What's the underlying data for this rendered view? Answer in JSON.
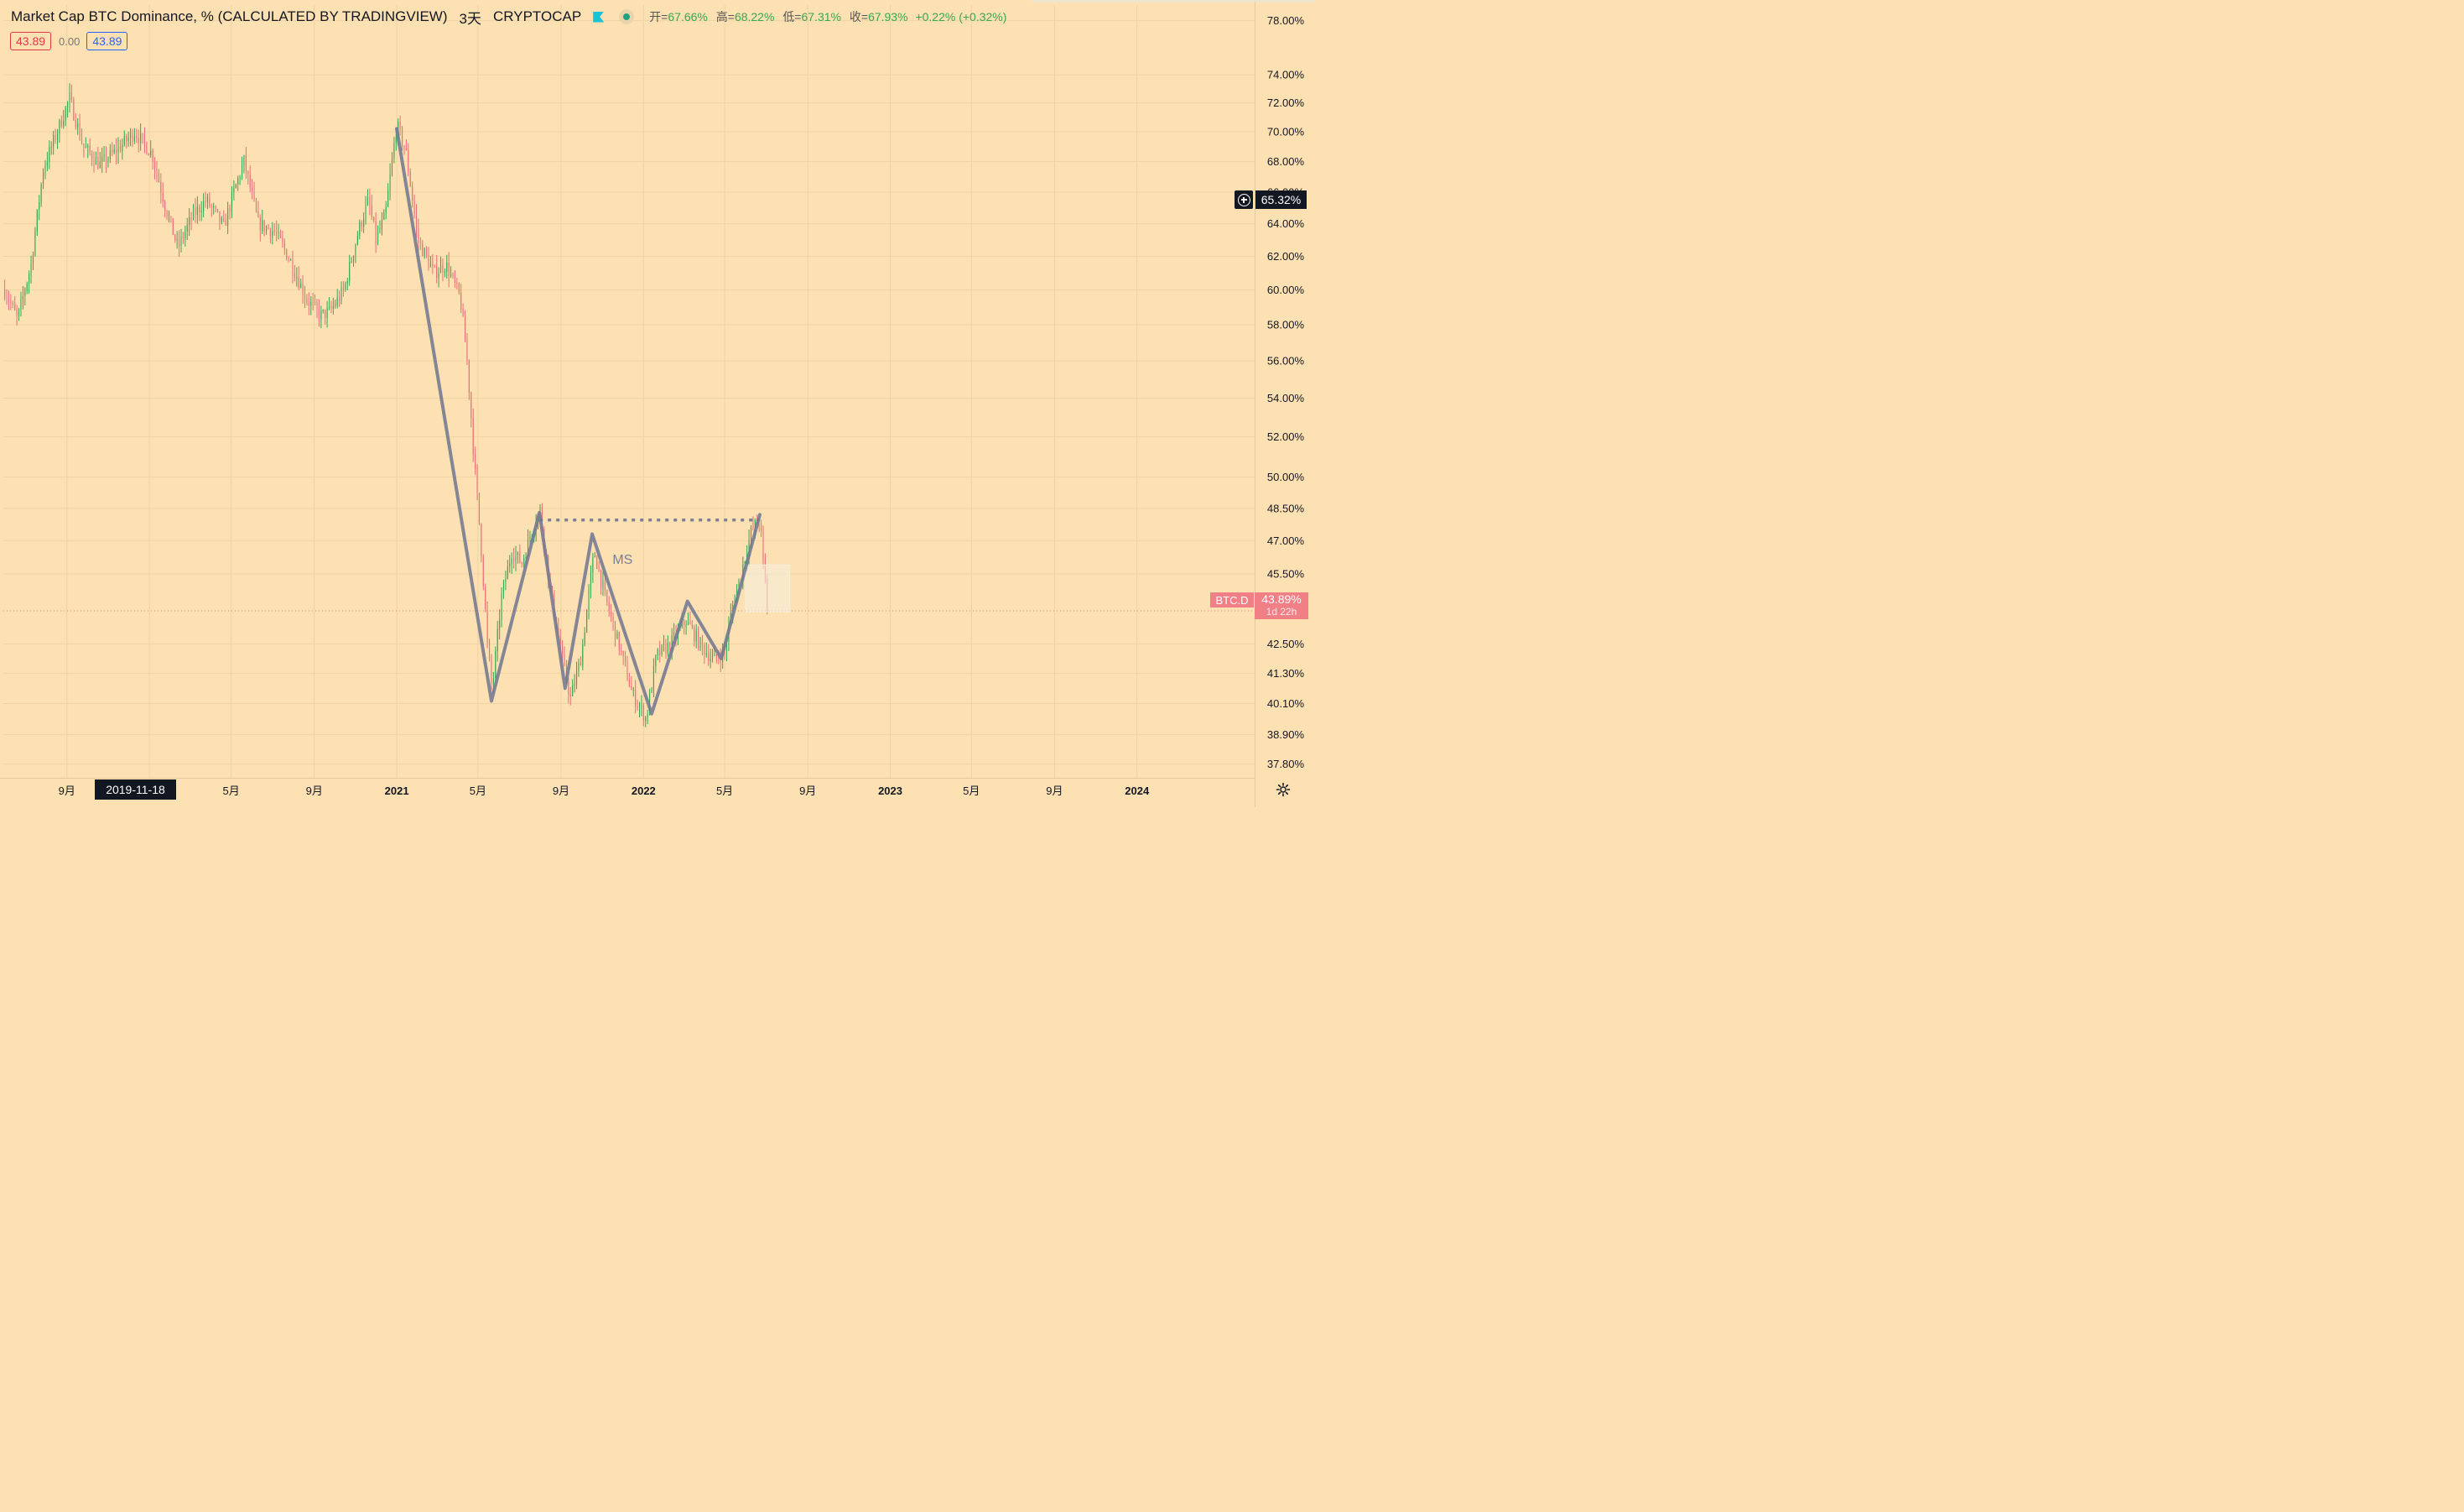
{
  "header": {
    "title": "Market Cap BTC Dominance, % (CALCULATED BY TRADINGVIEW)",
    "timeframe": "3天",
    "exchange": "CRYPTOCAP",
    "ohlc": {
      "open_label": "开=",
      "open": "67.66%",
      "high_label": "高=",
      "high": "68.22%",
      "low_label": "低=",
      "low": "67.31%",
      "close_label": "收=",
      "close": "67.93%",
      "change": "+0.22% (+0.32%)"
    }
  },
  "bid_ask": {
    "bid": "43.89",
    "spread": "0.00",
    "ask": "43.89"
  },
  "crosshair": {
    "date": "2019-11-18",
    "price": "65.32%"
  },
  "last_price": {
    "symbol": "BTC.D",
    "value": "43.89%",
    "countdown": "1d 22h"
  },
  "colors": {
    "background": "#fde1b2",
    "up": "#35a852",
    "down": "#e86e7a",
    "pattern": "#6f7590",
    "last_tag": "#f07f86"
  },
  "chart_data": {
    "type": "candlestick",
    "y_scale": "log",
    "y_ticks": [
      "78.00%",
      "74.00%",
      "72.00%",
      "70.00%",
      "68.00%",
      "66.00%",
      "64.00%",
      "62.00%",
      "60.00%",
      "58.00%",
      "56.00%",
      "54.00%",
      "52.00%",
      "50.00%",
      "48.50%",
      "47.00%",
      "45.50%",
      "42.50%",
      "41.30%",
      "40.10%",
      "38.90%",
      "37.80%"
    ],
    "x_ticks": [
      "9月",
      "1月",
      "5月",
      "9月",
      "2021",
      "5月",
      "9月",
      "2022",
      "5月",
      "9月",
      "2023",
      "5月",
      "9月",
      "2024"
    ],
    "x_ticks_visible": [
      "9月",
      "",
      "5月",
      "9月",
      "2021",
      "5月",
      "9月",
      "2022",
      "5月",
      "9月",
      "2023",
      "5月",
      "9月",
      "2024"
    ],
    "x_tick_dates": [
      "2019-09-01",
      "2020-01-01",
      "2020-05-01",
      "2020-09-01",
      "2021-01-01",
      "2021-05-01",
      "2021-09-01",
      "2022-01-01",
      "2022-05-01",
      "2022-09-01",
      "2023-01-01",
      "2023-05-01",
      "2023-09-01",
      "2024-01-01"
    ],
    "x_tick_bold": [
      false,
      true,
      false,
      false,
      true,
      false,
      false,
      true,
      false,
      false,
      true,
      false,
      false,
      true
    ],
    "anchors": [
      {
        "date": "2019-06-01",
        "value": 60.0
      },
      {
        "date": "2019-06-20",
        "value": 58.3
      },
      {
        "date": "2019-07-10",
        "value": 61.5
      },
      {
        "date": "2019-07-28",
        "value": 67.5
      },
      {
        "date": "2019-08-20",
        "value": 70.3
      },
      {
        "date": "2019-09-05",
        "value": 72.3
      },
      {
        "date": "2019-09-25",
        "value": 69.0
      },
      {
        "date": "2019-10-20",
        "value": 67.8
      },
      {
        "date": "2019-11-15",
        "value": 68.8
      },
      {
        "date": "2019-12-10",
        "value": 70.0
      },
      {
        "date": "2020-01-05",
        "value": 68.5
      },
      {
        "date": "2020-01-25",
        "value": 65.0
      },
      {
        "date": "2020-02-12",
        "value": 62.5
      },
      {
        "date": "2020-03-05",
        "value": 64.5
      },
      {
        "date": "2020-03-25",
        "value": 65.5
      },
      {
        "date": "2020-04-20",
        "value": 63.8
      },
      {
        "date": "2020-05-05",
        "value": 66.0
      },
      {
        "date": "2020-05-20",
        "value": 68.0
      },
      {
        "date": "2020-06-10",
        "value": 64.0
      },
      {
        "date": "2020-07-05",
        "value": 63.5
      },
      {
        "date": "2020-07-30",
        "value": 61.5
      },
      {
        "date": "2020-08-20",
        "value": 59.5
      },
      {
        "date": "2020-09-10",
        "value": 58.5
      },
      {
        "date": "2020-09-25",
        "value": 58.8
      },
      {
        "date": "2020-10-15",
        "value": 60.0
      },
      {
        "date": "2020-11-05",
        "value": 63.5
      },
      {
        "date": "2020-11-20",
        "value": 65.5
      },
      {
        "date": "2020-12-01",
        "value": 63.0
      },
      {
        "date": "2020-12-15",
        "value": 64.5
      },
      {
        "date": "2021-01-01",
        "value": 70.5
      },
      {
        "date": "2021-01-15",
        "value": 68.5
      },
      {
        "date": "2021-02-01",
        "value": 63.0
      },
      {
        "date": "2021-02-25",
        "value": 61.0
      },
      {
        "date": "2021-03-15",
        "value": 61.5
      },
      {
        "date": "2021-04-05",
        "value": 59.5
      },
      {
        "date": "2021-04-15",
        "value": 56.0
      },
      {
        "date": "2021-04-25",
        "value": 51.0
      },
      {
        "date": "2021-05-05",
        "value": 47.0
      },
      {
        "date": "2021-05-15",
        "value": 42.5
      },
      {
        "date": "2021-05-22",
        "value": 40.6
      },
      {
        "date": "2021-06-05",
        "value": 44.5
      },
      {
        "date": "2021-06-20",
        "value": 46.5
      },
      {
        "date": "2021-07-05",
        "value": 46.0
      },
      {
        "date": "2021-07-20",
        "value": 47.5
      },
      {
        "date": "2021-08-01",
        "value": 48.4
      },
      {
        "date": "2021-08-15",
        "value": 45.0
      },
      {
        "date": "2021-09-05",
        "value": 41.5
      },
      {
        "date": "2021-09-15",
        "value": 40.3
      },
      {
        "date": "2021-10-01",
        "value": 42.0
      },
      {
        "date": "2021-10-20",
        "value": 46.5
      },
      {
        "date": "2021-11-05",
        "value": 44.5
      },
      {
        "date": "2021-11-25",
        "value": 42.5
      },
      {
        "date": "2021-12-15",
        "value": 40.5
      },
      {
        "date": "2022-01-05",
        "value": 39.5
      },
      {
        "date": "2022-01-20",
        "value": 42.0
      },
      {
        "date": "2022-02-10",
        "value": 42.5
      },
      {
        "date": "2022-03-05",
        "value": 43.5
      },
      {
        "date": "2022-03-25",
        "value": 42.5
      },
      {
        "date": "2022-04-15",
        "value": 41.8
      },
      {
        "date": "2022-05-01",
        "value": 42.2
      },
      {
        "date": "2022-05-12",
        "value": 44.0
      },
      {
        "date": "2022-05-25",
        "value": 45.5
      },
      {
        "date": "2022-06-10",
        "value": 47.5
      },
      {
        "date": "2022-06-22",
        "value": 48.0
      },
      {
        "date": "2022-06-27",
        "value": 46.0
      },
      {
        "date": "2022-07-05",
        "value": 43.89
      }
    ],
    "pattern": {
      "label": "MS",
      "points": [
        {
          "date": "2021-01-01",
          "value": 70.2
        },
        {
          "date": "2021-05-21",
          "value": 40.2
        },
        {
          "date": "2021-07-31",
          "value": 48.3
        },
        {
          "date": "2021-09-07",
          "value": 40.7
        },
        {
          "date": "2021-10-17",
          "value": 47.3
        },
        {
          "date": "2022-01-13",
          "value": 39.7
        },
        {
          "date": "2022-03-07",
          "value": 44.3
        },
        {
          "date": "2022-04-26",
          "value": 41.9
        },
        {
          "date": "2022-06-22",
          "value": 48.2
        }
      ],
      "neckline": {
        "start": "2021-07-31",
        "end": "2022-06-20",
        "value": 47.95
      }
    },
    "last_value": 43.89,
    "ylim": [
      37.3,
      79.2
    ],
    "xlim": [
      "2019-05-30",
      "2024-06-23"
    ]
  }
}
